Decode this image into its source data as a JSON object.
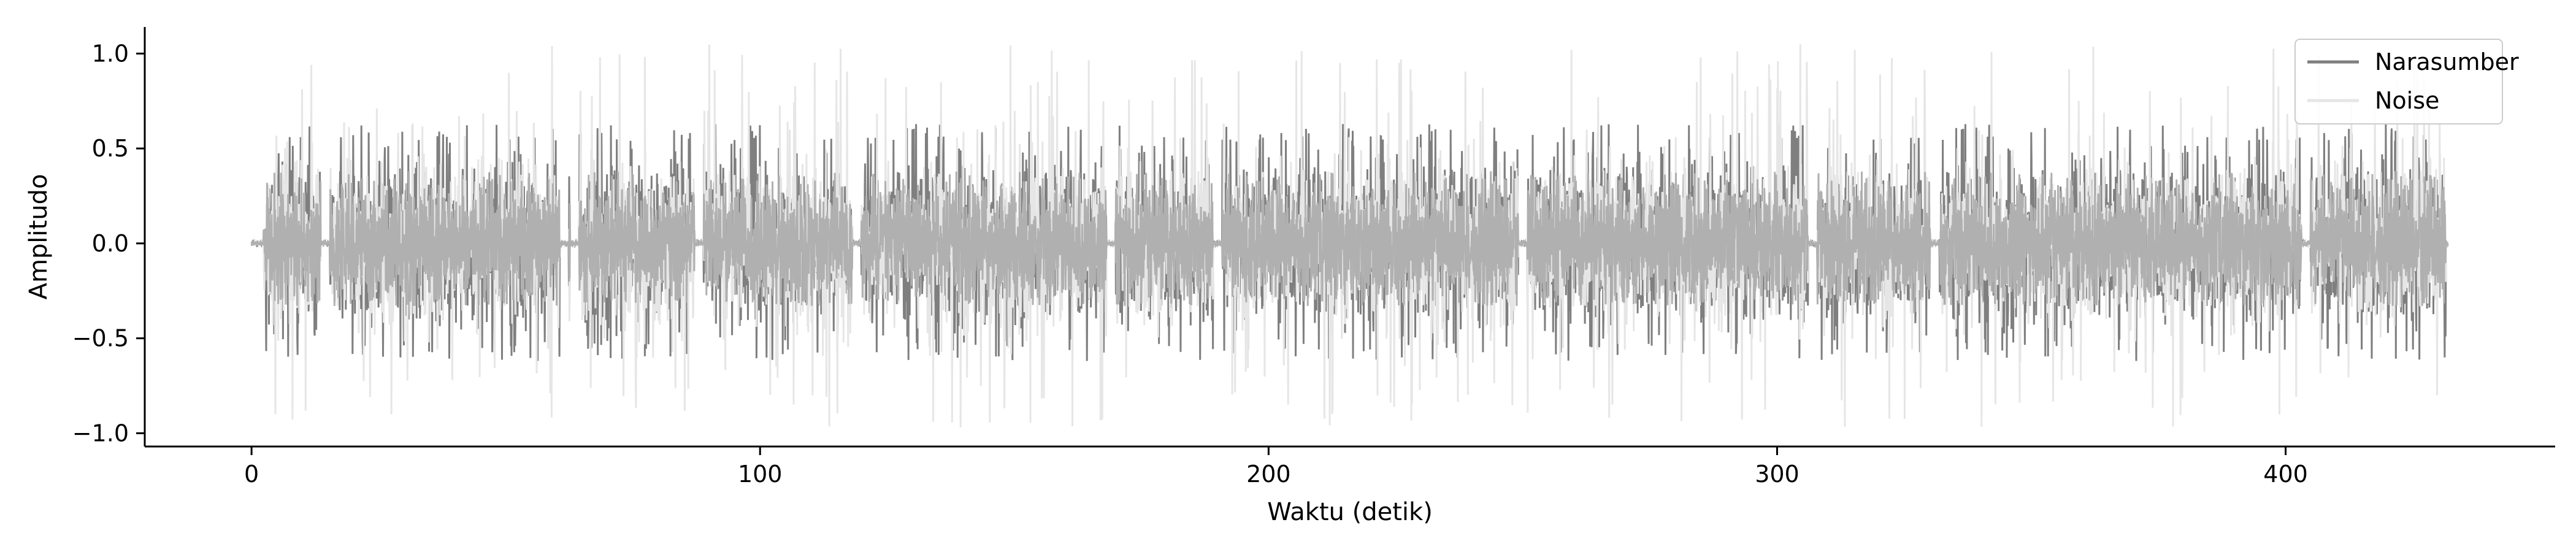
{
  "chart_data": {
    "type": "line",
    "title": "",
    "xlabel": "Waktu (detik)",
    "ylabel": "Amplitudo",
    "xlim": [
      -21,
      453
    ],
    "ylim": [
      -1.07,
      1.14
    ],
    "xticks": [
      0,
      100,
      200,
      300,
      400
    ],
    "xtick_labels": [
      "0",
      "100",
      "200",
      "300",
      "400"
    ],
    "yticks": [
      -1.0,
      -0.5,
      0.0,
      0.5,
      1.0
    ],
    "ytick_labels": [
      "−1.0",
      "−0.5",
      "0.0",
      "0.5",
      "1.0"
    ],
    "grid": false,
    "legend_position": "top-right",
    "series": [
      {
        "name": "Narasumber",
        "color": "#7f7f7f",
        "x_range": [
          0,
          432
        ],
        "envelope_pos": 0.5,
        "envelope_neg": -0.48,
        "peak_pos": 0.63,
        "peak_neg": -0.62
      },
      {
        "name": "Noise",
        "color": "#e6e6e6",
        "x_range": [
          0,
          432
        ],
        "envelope_pos": 0.5,
        "envelope_neg": -0.3,
        "peak_pos": 1.05,
        "peak_neg": -0.97
      }
    ],
    "overlap_color": "#b0b0b0",
    "silence_gaps": [
      1.5,
      14.5,
      61.5,
      63.5,
      88,
      119,
      169,
      190,
      250,
      307,
      331,
      404
    ]
  }
}
